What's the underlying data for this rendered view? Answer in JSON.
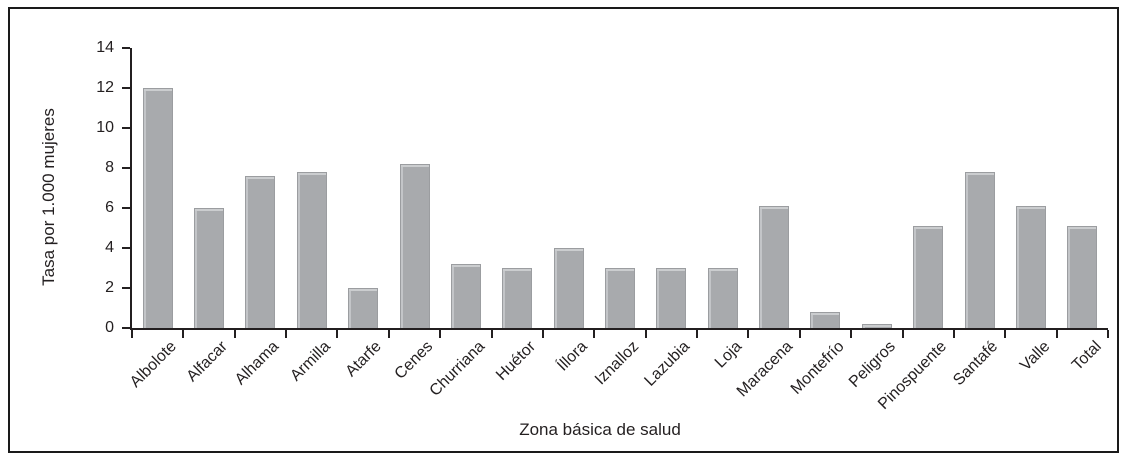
{
  "figure": {
    "background": "#ffffff",
    "frame_border_color": "#1a1a1a"
  },
  "chart_data": {
    "type": "bar",
    "title": "",
    "xlabel": "Zona básica de salud",
    "ylabel": "Tasa por 1.000 mujeres",
    "categories": [
      "Albolote",
      "Alfacar",
      "Alhama",
      "Armilla",
      "Atarfe",
      "Cenes",
      "Churriana",
      "Huétor",
      "Íllora",
      "Iznalloz",
      "Lazubia",
      "Loja",
      "Maracena",
      "Montefrío",
      "Peligros",
      "Pinospuente",
      "Santafé",
      "Valle",
      "Total"
    ],
    "values": [
      12,
      6,
      7.6,
      7.8,
      2,
      8.2,
      3.2,
      3,
      4,
      3,
      3,
      3,
      6.1,
      0.8,
      0.2,
      5.1,
      7.8,
      6.1,
      5.1
    ],
    "ylim": [
      0,
      14
    ],
    "yticks": [
      0,
      2,
      4,
      6,
      8,
      10,
      12,
      14
    ],
    "grid": false,
    "legend_position": "none",
    "x_tick_rotation": -45,
    "bar_color": "#a8aaad",
    "bar_edge_color": "#9b9da0",
    "axis_color": "#231f20"
  }
}
